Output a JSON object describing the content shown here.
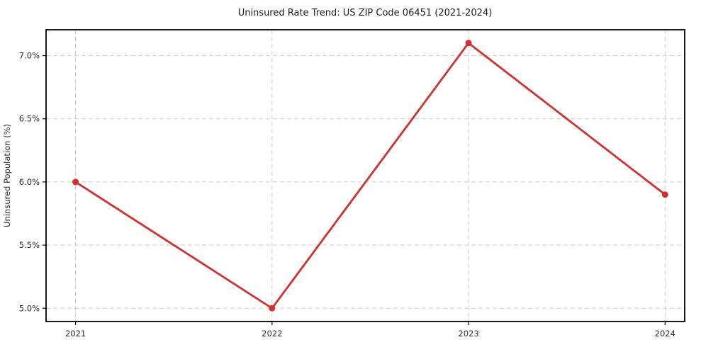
{
  "chart_data": {
    "type": "line",
    "title": "Uninsured Rate Trend: US ZIP Code 06451 (2021-2024)",
    "xlabel": "",
    "ylabel": "Uninsured Population (%)",
    "x": [
      2021,
      2022,
      2023,
      2024
    ],
    "x_tick_labels": [
      "2021",
      "2022",
      "2023",
      "2024"
    ],
    "values": [
      6.0,
      5.0,
      7.1,
      5.9
    ],
    "y_ticks": [
      5.0,
      5.5,
      6.0,
      6.5,
      7.0
    ],
    "y_tick_labels": [
      "5.0%",
      "5.5%",
      "6.0%",
      "6.5%",
      "7.0%"
    ],
    "xlim": [
      2020.85,
      2024.1
    ],
    "ylim": [
      4.895,
      7.205
    ],
    "grid": true,
    "grid_style": "dashed",
    "legend": false,
    "line_color": "#d32f2f",
    "marker": "circle",
    "marker_color": "#d32f2f",
    "grid_color": "#cccccc",
    "spine_color": "#000000",
    "background": "#ffffff"
  }
}
